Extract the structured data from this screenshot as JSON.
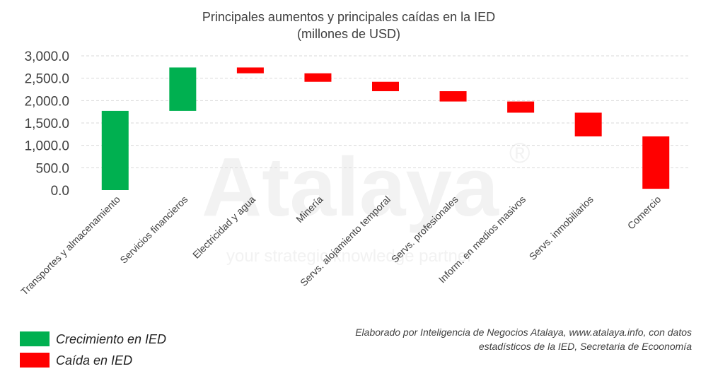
{
  "chart_data": {
    "type": "bar",
    "subtype": "waterfall",
    "title": "Principales  aumentos  y principales  caídas en la IED",
    "subtitle": "(millones  de  USD)",
    "categories": [
      "Transportes y almacenamiento",
      "Servicios financieros",
      "Electricidad y agua",
      "Minería",
      "Servs. alojamiento temporal",
      "Servs. profesionales",
      "Inform. en medios masivos",
      "Servs. inmobiliarios",
      "Comercio"
    ],
    "bars": [
      {
        "start": 0,
        "end": 1770,
        "kind": "crecimiento"
      },
      {
        "start": 1770,
        "end": 2740,
        "kind": "crecimiento"
      },
      {
        "start": 2740,
        "end": 2610,
        "kind": "caida"
      },
      {
        "start": 2610,
        "end": 2420,
        "kind": "caida"
      },
      {
        "start": 2420,
        "end": 2210,
        "kind": "caida"
      },
      {
        "start": 2210,
        "end": 1980,
        "kind": "caida"
      },
      {
        "start": 1980,
        "end": 1730,
        "kind": "caida"
      },
      {
        "start": 1730,
        "end": 1200,
        "kind": "caida"
      },
      {
        "start": 1200,
        "end": 30,
        "kind": "caida"
      }
    ],
    "yticks": [
      "0.0",
      "500.0",
      "1,000.0",
      "1,500.0",
      "2,000.0",
      "2,500.0",
      "3,000.0"
    ],
    "ylim": [
      0,
      3000
    ],
    "grid": true,
    "legend_position": "bottom-left",
    "legend": [
      {
        "label": "Crecimiento en IED",
        "color": "#00b050"
      },
      {
        "label": "Caída en IED",
        "color": "#ff0000"
      }
    ],
    "colors": {
      "crecimiento": "#00b050",
      "caida": "#ff0000"
    }
  },
  "watermark": {
    "brand": "Atalaya",
    "registered": "®",
    "tagline": "your strategic knowledge partner"
  },
  "source_note": {
    "line1": "Elaborado por Inteligencia de Negocios Atalaya, www.atalaya.info,  con datos",
    "line2": "estadísticos de la IED, Secretaria  de Ecoonomía"
  }
}
